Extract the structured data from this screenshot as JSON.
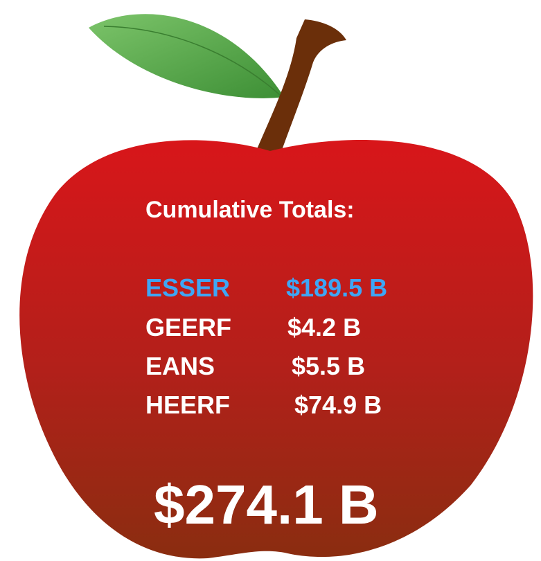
{
  "title": "Cumulative Totals:",
  "items": [
    {
      "name": "ESSER",
      "amount": "$189.5 B"
    },
    {
      "name": "GEERF",
      "amount": "$4.2 B"
    },
    {
      "name": "EANS",
      "amount": "$5.5 B"
    },
    {
      "name": "HEERF",
      "amount": "$74.9 B"
    }
  ],
  "total": "$274.1 B"
}
